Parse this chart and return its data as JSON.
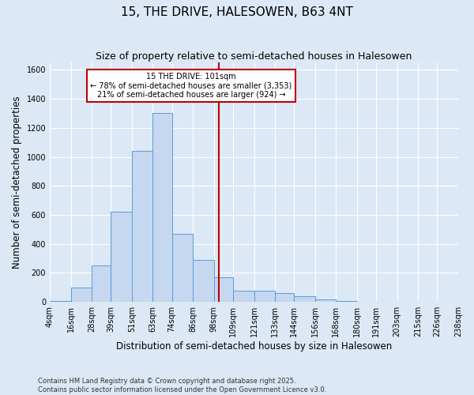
{
  "title": "15, THE DRIVE, HALESOWEN, B63 4NT",
  "subtitle": "Size of property relative to semi-detached houses in Halesowen",
  "xlabel": "Distribution of semi-detached houses by size in Halesowen",
  "ylabel": "Number of semi-detached properties",
  "footnote1": "Contains HM Land Registry data © Crown copyright and database right 2025.",
  "footnote2": "Contains public sector information licensed under the Open Government Licence v3.0.",
  "annotation_title": "15 THE DRIVE: 101sqm",
  "annotation_line1": "← 78% of semi-detached houses are smaller (3,353)",
  "annotation_line2": "21% of semi-detached houses are larger (924) →",
  "property_size": 101,
  "bin_edges": [
    4,
    16,
    28,
    39,
    51,
    63,
    74,
    86,
    98,
    109,
    121,
    133,
    144,
    156,
    168,
    180,
    191,
    203,
    215,
    226,
    238
  ],
  "bin_counts": [
    5,
    100,
    250,
    620,
    1040,
    1300,
    470,
    290,
    170,
    80,
    80,
    60,
    40,
    15,
    5,
    2,
    2,
    0,
    0,
    0
  ],
  "bar_color": "#c5d8f0",
  "bar_edge_color": "#5b9bd5",
  "vline_color": "#c00000",
  "annotation_box_color": "#ffffff",
  "annotation_box_edge": "#c00000",
  "ylim": [
    0,
    1650
  ],
  "yticks": [
    0,
    200,
    400,
    600,
    800,
    1000,
    1200,
    1400,
    1600
  ],
  "background_color": "#dce8f5",
  "grid_color": "#ffffff",
  "title_fontsize": 11,
  "subtitle_fontsize": 9,
  "axis_label_fontsize": 8.5,
  "tick_fontsize": 7,
  "footnote_fontsize": 6
}
